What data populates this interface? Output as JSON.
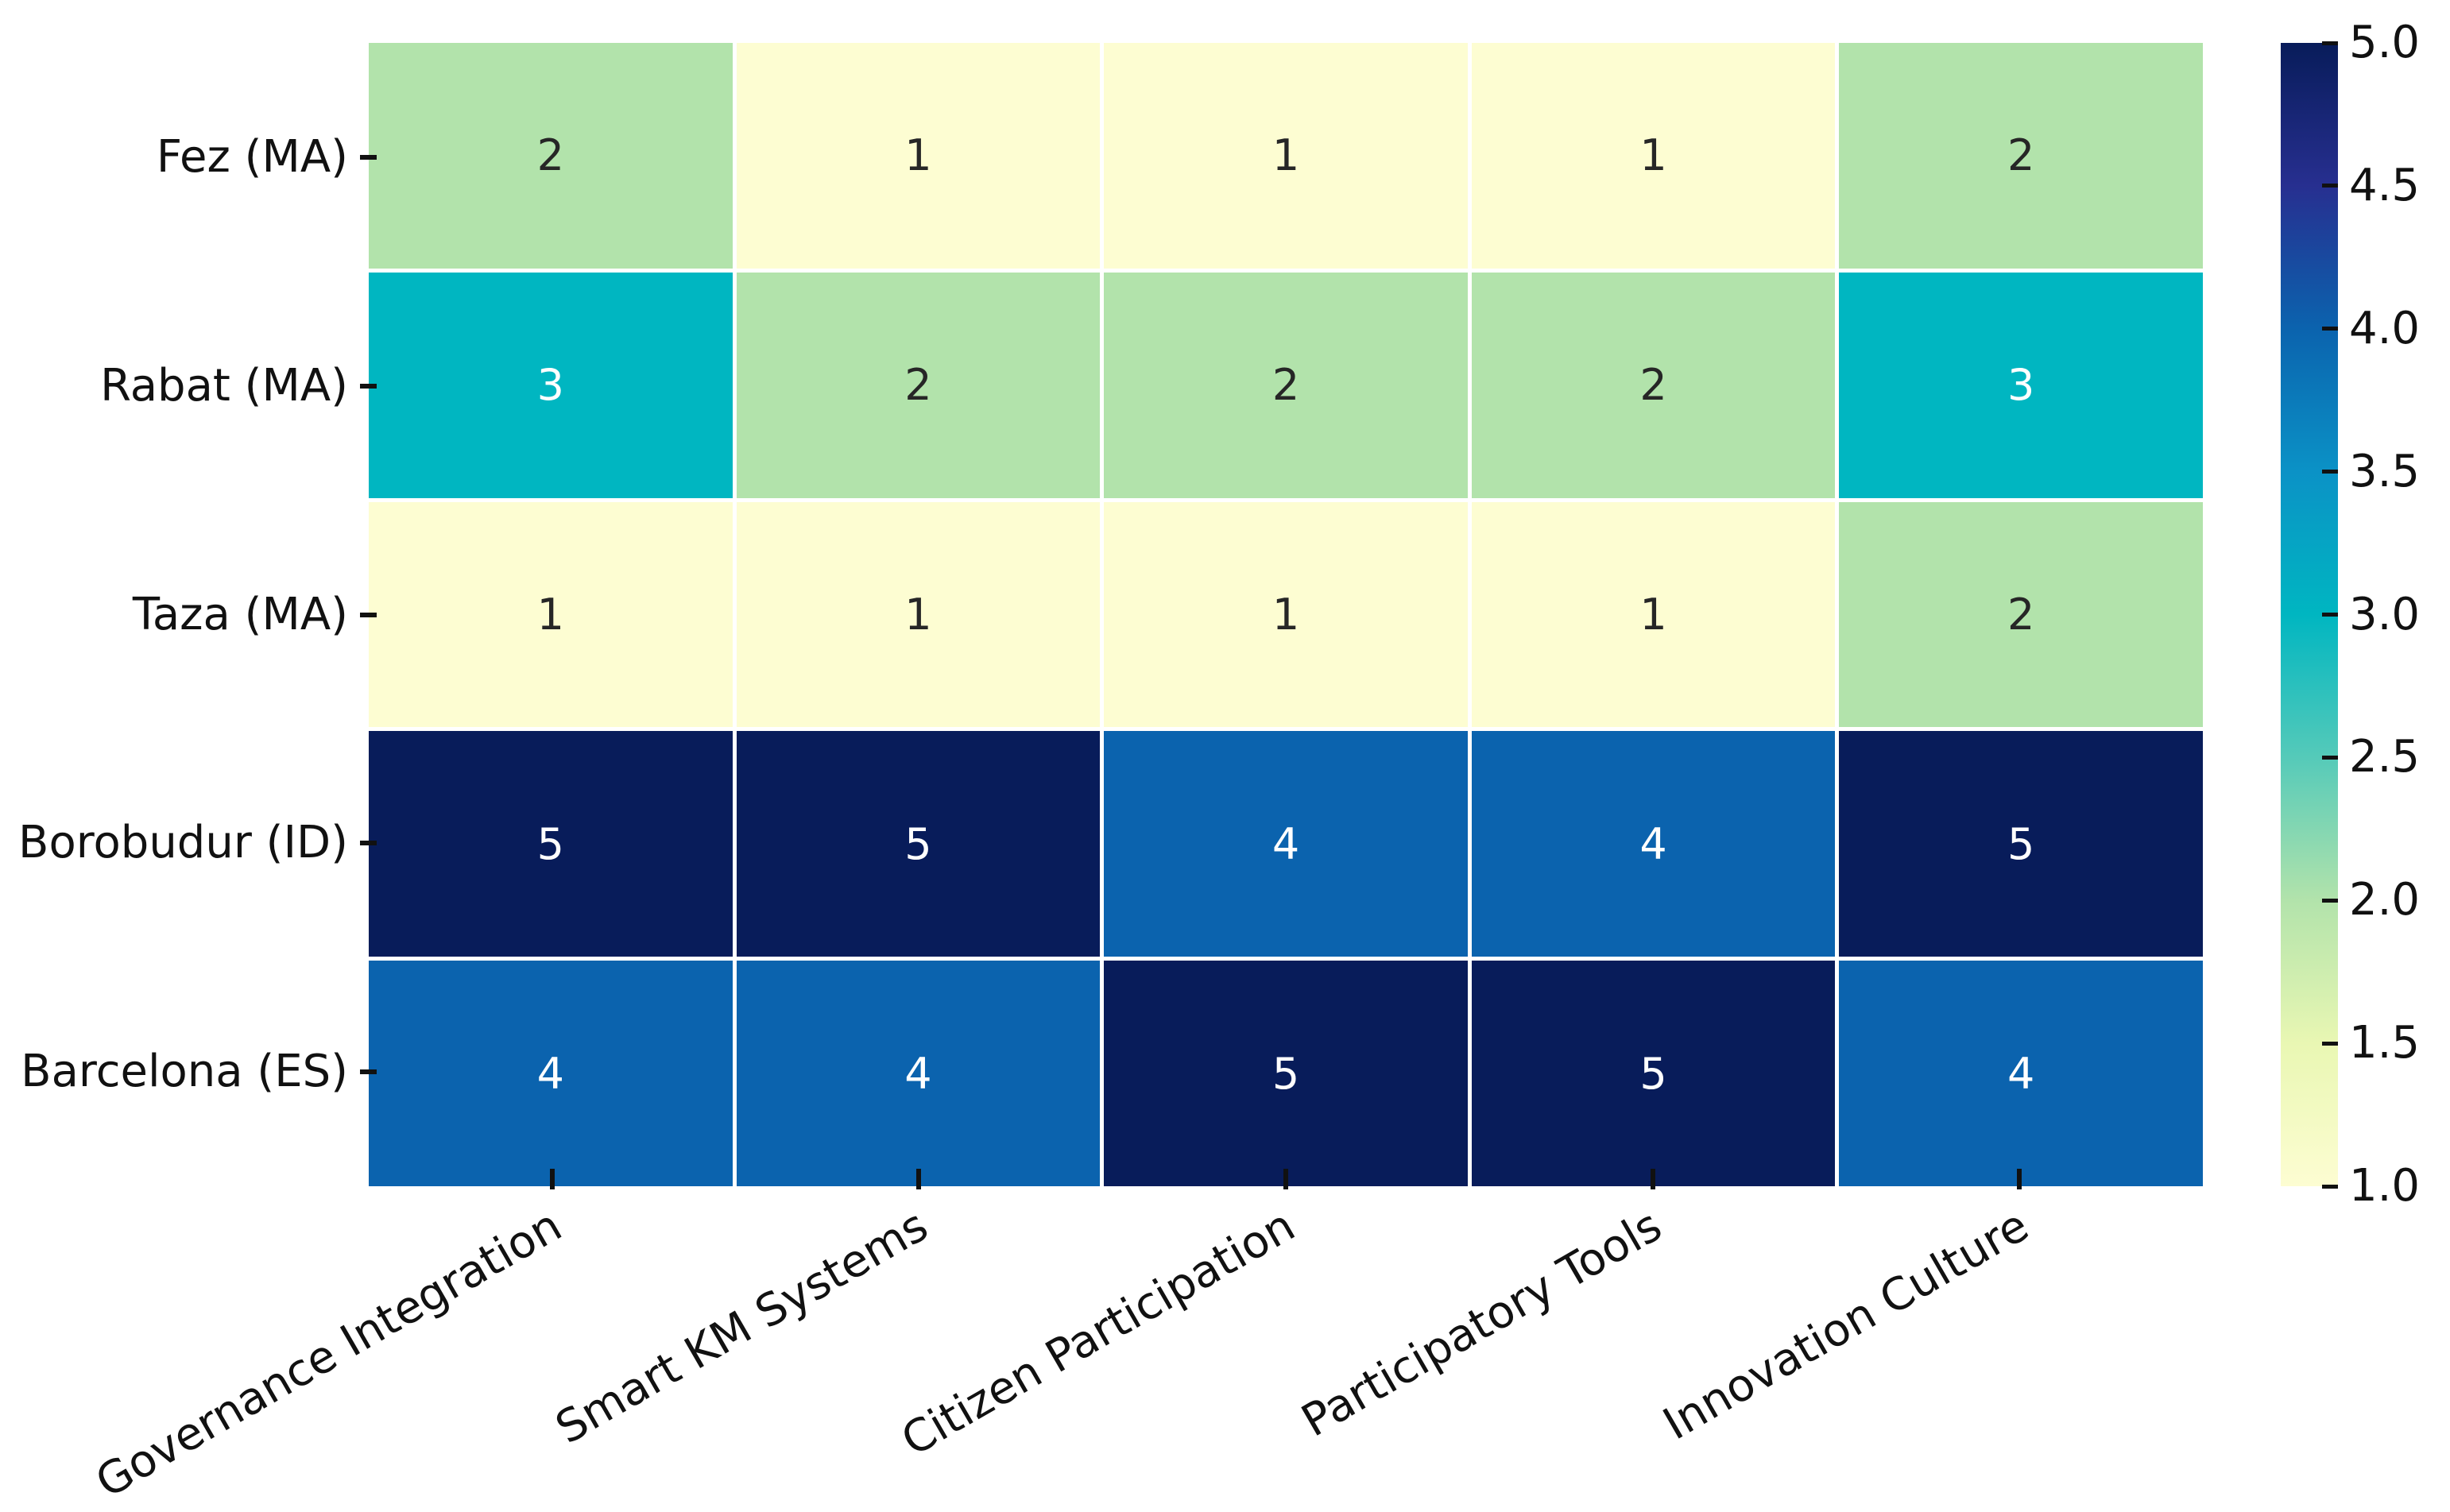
{
  "figure": {
    "background": "#ffffff",
    "text_color": "#111111",
    "grid_line_color": "#ffffff"
  },
  "chart_data": {
    "type": "heatmap",
    "title": "",
    "xlabel": "",
    "ylabel": "",
    "rows": [
      "Fez (MA)",
      "Rabat (MA)",
      "Taza (MA)",
      "Borobudur (ID)",
      "Barcelona (ES)"
    ],
    "columns": [
      "Governance Integration",
      "Smart KM Systems",
      "Citizen Participation",
      "Participatory Tools",
      "Innovation Culture"
    ],
    "values": [
      [
        2,
        1,
        1,
        1,
        2
      ],
      [
        3,
        2,
        2,
        2,
        3
      ],
      [
        1,
        1,
        1,
        1,
        2
      ],
      [
        5,
        5,
        4,
        4,
        5
      ],
      [
        4,
        4,
        5,
        5,
        4
      ]
    ],
    "vmin": 1,
    "vmax": 5,
    "colormap": "YlGnBu",
    "x_tick_rotation_deg": 30,
    "annotated": true,
    "annotation_text_dark": "#262626",
    "annotation_text_light": "#ffffff",
    "annotation_white_threshold": 3,
    "value_colors": {
      "1": "#fdfdd2",
      "2": "#b2e3ab",
      "3": "#00b6c1",
      "4": "#0b63ae",
      "5": "#081c5a"
    },
    "colorbar": {
      "position": "right",
      "tick_labels": [
        "5.0",
        "4.5",
        "4.0",
        "3.5",
        "3.0",
        "2.5",
        "2.0",
        "1.5",
        "1.0"
      ],
      "tick_values": [
        5.0,
        4.5,
        4.0,
        3.5,
        3.0,
        2.5,
        2.0,
        1.5,
        1.0
      ],
      "gradient_stops": [
        {
          "value": 1.0,
          "color": "#fdfdd2"
        },
        {
          "value": 1.5,
          "color": "#e9f7b3"
        },
        {
          "value": 2.0,
          "color": "#b2e3ab"
        },
        {
          "value": 2.5,
          "color": "#55cab9"
        },
        {
          "value": 3.0,
          "color": "#00b6c1"
        },
        {
          "value": 3.5,
          "color": "#0b92c6"
        },
        {
          "value": 4.0,
          "color": "#0b63ae"
        },
        {
          "value": 4.5,
          "color": "#272f90"
        },
        {
          "value": 5.0,
          "color": "#081c5a"
        }
      ]
    }
  }
}
